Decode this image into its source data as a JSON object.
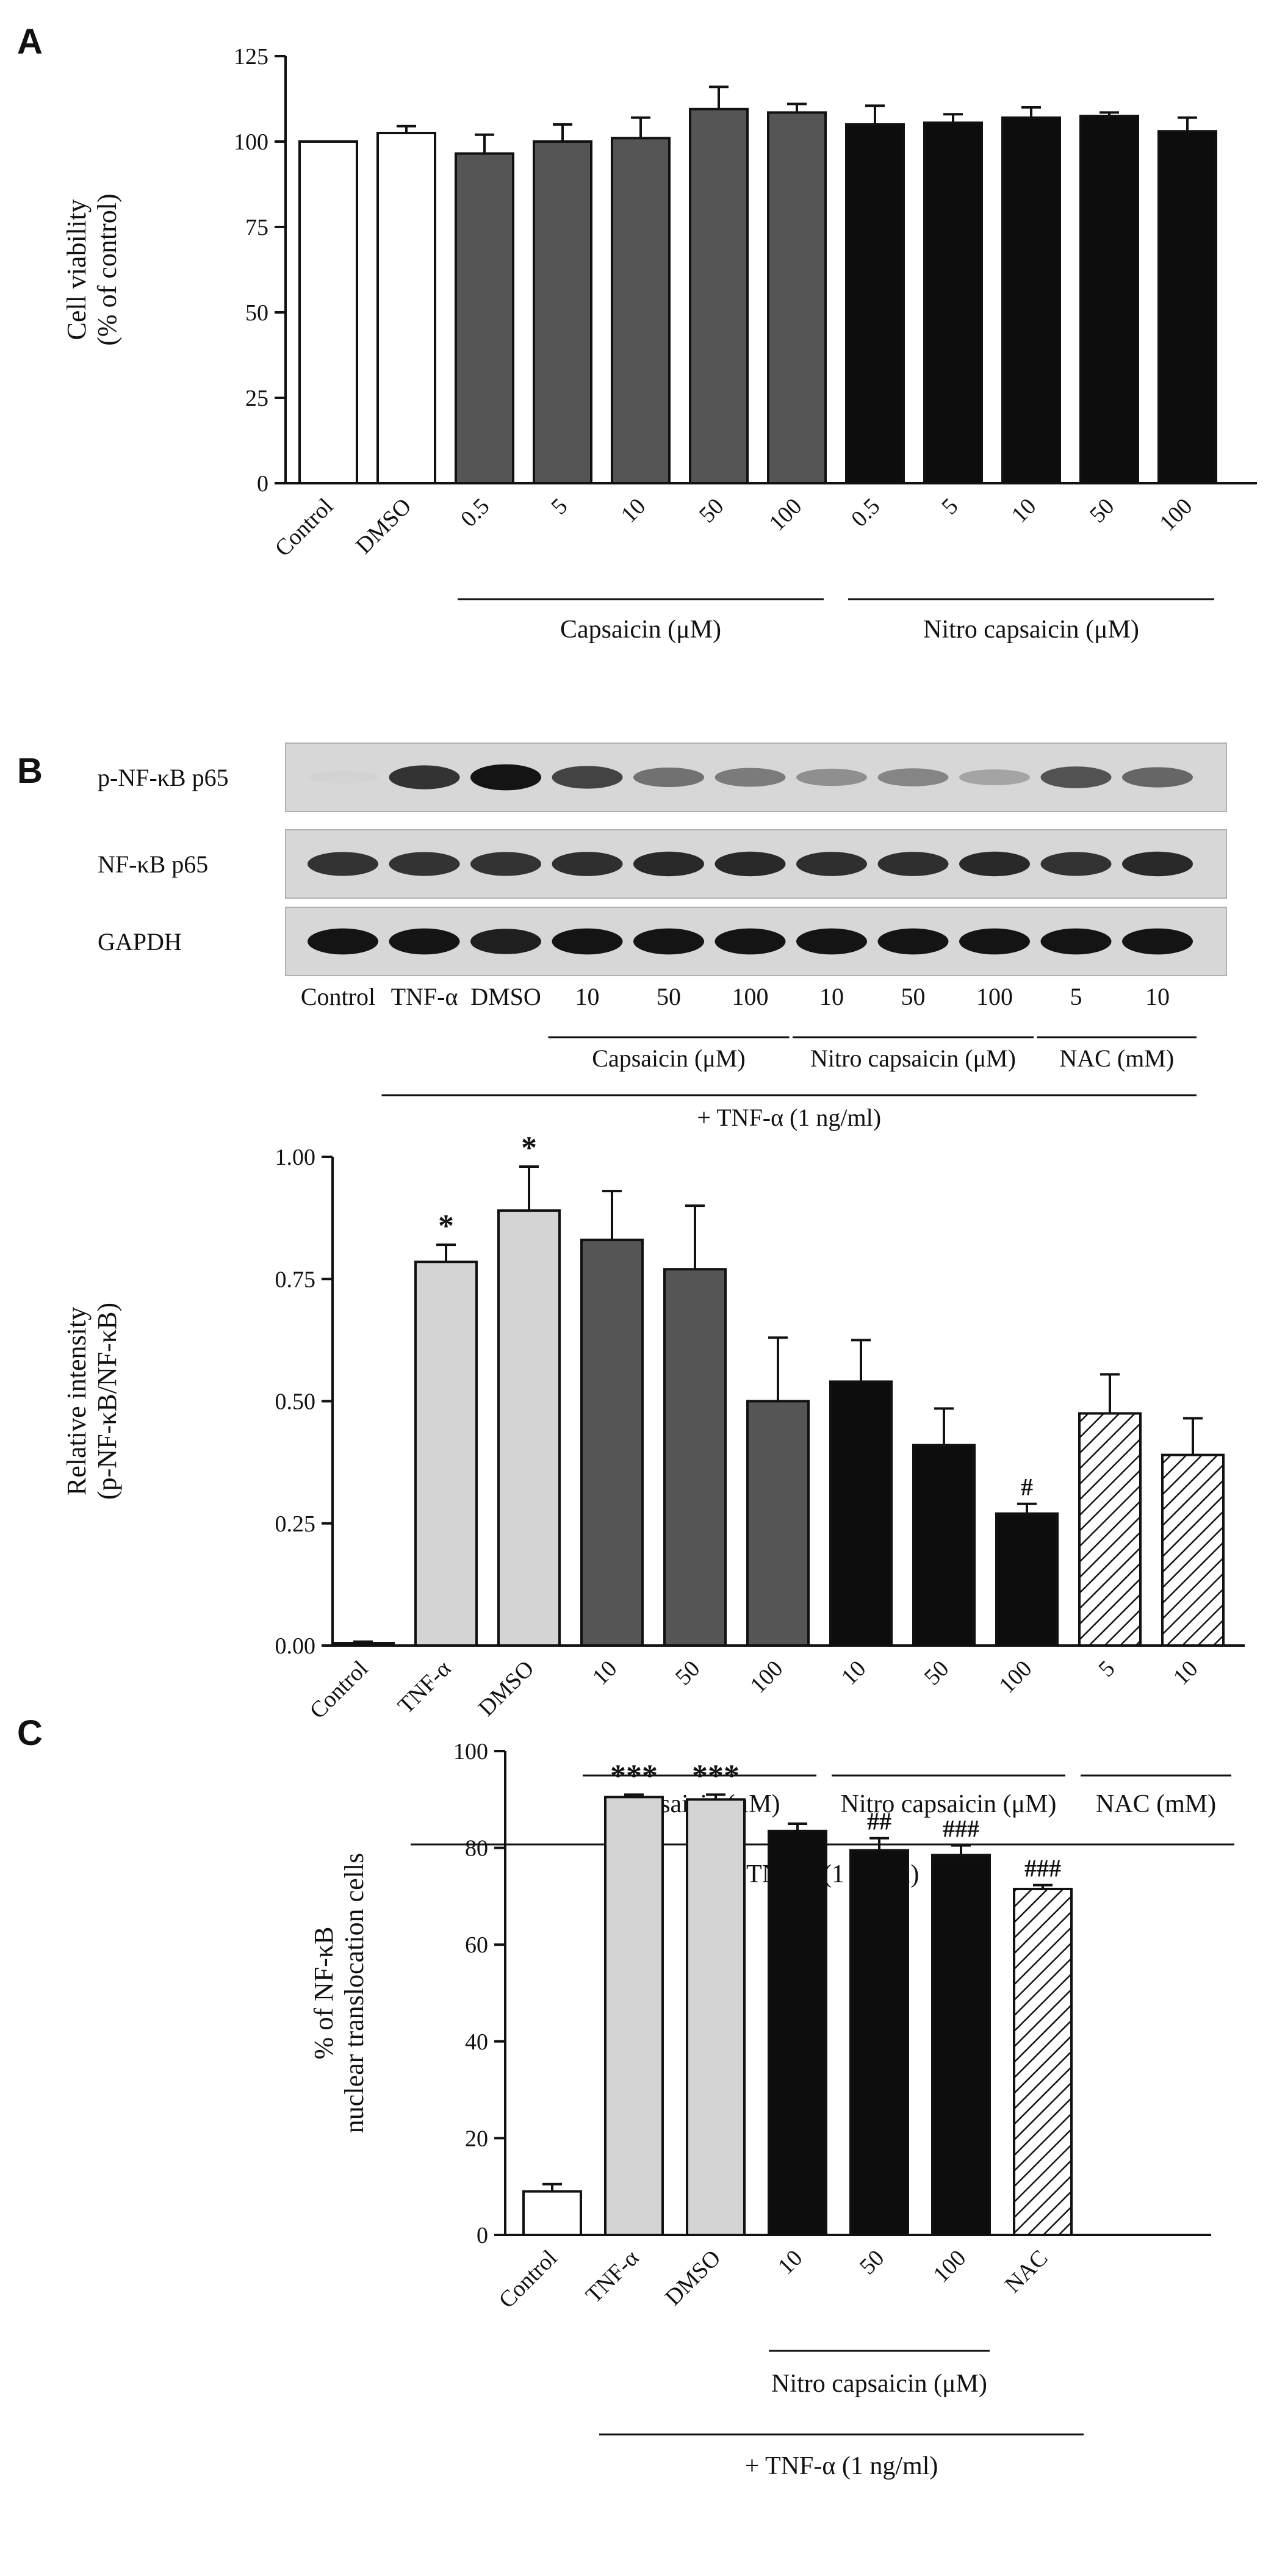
{
  "colors": {
    "white_fill": "#ffffff",
    "dark_gray_fill": "#555555",
    "black_fill": "#0d0d0d",
    "light_gray_fill": "#d4d4d4",
    "hatch_stroke": "#111111",
    "axis": "#111111"
  },
  "chart_data": [
    {
      "panel": "A",
      "type": "bar",
      "ylabel": [
        "Cell viability",
        "(% of control)"
      ],
      "ylim": [
        0,
        125
      ],
      "yticks": [
        "0",
        "25",
        "50",
        "75",
        "100",
        "125"
      ],
      "categories": [
        "Control",
        "DMSO",
        "0.5",
        "5",
        "10",
        "50",
        "100",
        "0.5",
        "5",
        "10",
        "50",
        "100"
      ],
      "values": [
        100,
        102.5,
        96.5,
        100,
        101,
        109.5,
        108.5,
        105,
        105.5,
        107,
        107.5,
        103
      ],
      "errors": [
        0,
        2,
        5.5,
        5,
        6,
        6.5,
        2.5,
        5.5,
        2.5,
        3,
        1,
        4
      ],
      "styles": [
        "white",
        "white",
        "dark",
        "dark",
        "dark",
        "dark",
        "dark",
        "black",
        "black",
        "black",
        "black",
        "black"
      ],
      "groups": [
        {
          "label": "Capsaicin (μM)",
          "start": 2,
          "end": 6
        },
        {
          "label": "Nitro capsaicin (μM)",
          "start": 7,
          "end": 11
        }
      ],
      "annotations": [
        "",
        "",
        "",
        "",
        "",
        "",
        "",
        "",
        "",
        "",
        "",
        ""
      ]
    },
    {
      "panel": "B",
      "type": "bar",
      "ylabel": [
        "Relative intensity",
        "(p-NF-κB/NF-κB)"
      ],
      "ylim": [
        0,
        1
      ],
      "yticks": [
        "0.00",
        "0.25",
        "0.50",
        "0.75",
        "1.00"
      ],
      "categories": [
        "Control",
        "TNF-α",
        "DMSO",
        "10",
        "50",
        "100",
        "10",
        "50",
        "100",
        "5",
        "10"
      ],
      "values": [
        0.005,
        0.785,
        0.89,
        0.83,
        0.77,
        0.5,
        0.54,
        0.41,
        0.27,
        0.475,
        0.39
      ],
      "errors": [
        0.003,
        0.035,
        0.09,
        0.1,
        0.13,
        0.13,
        0.085,
        0.075,
        0.02,
        0.08,
        0.075
      ],
      "styles": [
        "white",
        "light",
        "light",
        "dark",
        "dark",
        "dark",
        "black",
        "black",
        "black",
        "hatch",
        "hatch"
      ],
      "groups": [
        {
          "label": "Capsaicin (μM)",
          "start": 3,
          "end": 5
        },
        {
          "label": "Nitro capsaicin (μM)",
          "start": 6,
          "end": 8
        },
        {
          "label": "NAC (mM)",
          "start": 9,
          "end": 10
        }
      ],
      "bottom_label": "+ TNF-α (1 ng/ml)",
      "bottom_start": 1,
      "bottom_end": 10,
      "annotations": [
        "",
        "*",
        "*",
        "",
        "",
        "",
        "",
        "",
        "#",
        "",
        ""
      ]
    },
    {
      "panel": "C",
      "type": "bar",
      "ylabel": [
        "% of NF-κB",
        "nuclear translocation cells"
      ],
      "ylim": [
        0,
        100
      ],
      "yticks": [
        "0",
        "20",
        "40",
        "60",
        "80",
        "100"
      ],
      "categories": [
        "Control",
        "TNF-α",
        "DMSO",
        "10",
        "50",
        "100",
        "NAC"
      ],
      "values": [
        9,
        90.5,
        90,
        83.5,
        79.5,
        78.5,
        71.5
      ],
      "errors": [
        1.5,
        0.5,
        1,
        1.5,
        2.5,
        2,
        0.8
      ],
      "styles": [
        "white",
        "light",
        "light",
        "black",
        "black",
        "black",
        "hatch"
      ],
      "groups": [
        {
          "label": "Nitro capsaicin (μM)",
          "start": 3,
          "end": 5
        }
      ],
      "bottom_label": "+ TNF-α (1 ng/ml)",
      "bottom_start": 1,
      "bottom_end": 6,
      "annotations": [
        "",
        "***",
        "***",
        "",
        "##",
        "###",
        "###"
      ]
    }
  ],
  "blot": {
    "rows": [
      {
        "label": "p-NF-κB p65",
        "intensities": [
          0.02,
          0.8,
          0.95,
          0.72,
          0.5,
          0.45,
          0.35,
          0.4,
          0.25,
          0.65,
          0.55
        ]
      },
      {
        "label": "NF-κB p65",
        "intensities": [
          0.8,
          0.8,
          0.8,
          0.82,
          0.85,
          0.85,
          0.82,
          0.82,
          0.85,
          0.8,
          0.85
        ]
      },
      {
        "label": "GAPDH",
        "intensities": [
          0.95,
          0.95,
          0.9,
          0.95,
          0.95,
          0.95,
          0.95,
          0.95,
          0.95,
          0.95,
          0.95
        ]
      }
    ],
    "lanes": [
      "Control",
      "TNF-α",
      "DMSO",
      "10",
      "50",
      "100",
      "10",
      "50",
      "100",
      "5",
      "10"
    ],
    "groups": [
      {
        "label": "Capsaicin (μM)",
        "start": 3,
        "end": 5
      },
      {
        "label": "Nitro capsaicin (μM)",
        "start": 6,
        "end": 8
      },
      {
        "label": "NAC (mM)",
        "start": 9,
        "end": 10
      }
    ],
    "bottom_label": "+ TNF-α (1 ng/ml)"
  }
}
